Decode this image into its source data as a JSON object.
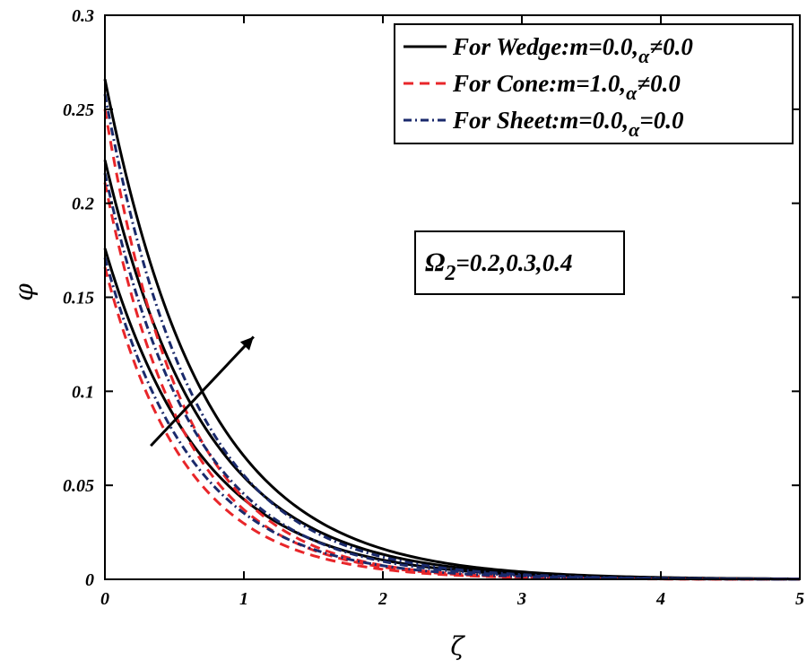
{
  "chart_data": {
    "type": "line",
    "title": "",
    "xlabel": "ζ",
    "ylabel": "φ",
    "xlim": [
      0,
      5
    ],
    "ylim": [
      0,
      0.3
    ],
    "xticks": [
      0,
      1,
      2,
      3,
      4,
      5
    ],
    "xtick_labels": [
      "0",
      "1",
      "2",
      "3",
      "4",
      "5"
    ],
    "yticks": [
      0,
      0.05,
      0.1,
      0.15,
      0.2,
      0.25,
      0.3
    ],
    "ytick_labels": [
      "0",
      "0.05",
      "0.1",
      "0.15",
      "0.2",
      "0.25",
      "0.3"
    ],
    "grid": false,
    "legend_position": "top-right",
    "legend": [
      {
        "name": "For Wedge:m=0.0,",
        "symbol": "α",
        "relation": "≠0.0",
        "color": "#000000",
        "dash": "solid"
      },
      {
        "name": "For Cone:m=1.0,",
        "symbol": "α",
        "relation": "≠0.0",
        "color": "#e8262a",
        "dash": "dashed"
      },
      {
        "name": "For Sheet:m=0.0,",
        "symbol": "α",
        "relation": "=0.0",
        "color": "#1a2a6c",
        "dash": "dashdot"
      }
    ],
    "annotation": {
      "symbol": "Ω",
      "subscript": "2",
      "text": "=0.2,0.3,0.4"
    },
    "arrow": {
      "from": [
        0.33,
        0.071
      ],
      "to": [
        1.07,
        0.129
      ],
      "meaning": "increasing Ω2"
    },
    "series": [
      {
        "group": "wedge",
        "omega2": 0.2,
        "phi0": 0.176,
        "decay": 1.42
      },
      {
        "group": "wedge",
        "omega2": 0.3,
        "phi0": 0.223,
        "decay": 1.41
      },
      {
        "group": "wedge",
        "omega2": 0.4,
        "phi0": 0.266,
        "decay": 1.4
      },
      {
        "group": "cone",
        "omega2": 0.2,
        "phi0": 0.166,
        "decay": 1.72
      },
      {
        "group": "cone",
        "omega2": 0.3,
        "phi0": 0.211,
        "decay": 1.74
      },
      {
        "group": "cone",
        "omega2": 0.4,
        "phi0": 0.25,
        "decay": 1.76
      },
      {
        "group": "sheet",
        "omega2": 0.2,
        "phi0": 0.171,
        "decay": 1.58
      },
      {
        "group": "sheet",
        "omega2": 0.3,
        "phi0": 0.216,
        "decay": 1.56
      },
      {
        "group": "sheet",
        "omega2": 0.4,
        "phi0": 0.258,
        "decay": 1.54
      }
    ]
  }
}
